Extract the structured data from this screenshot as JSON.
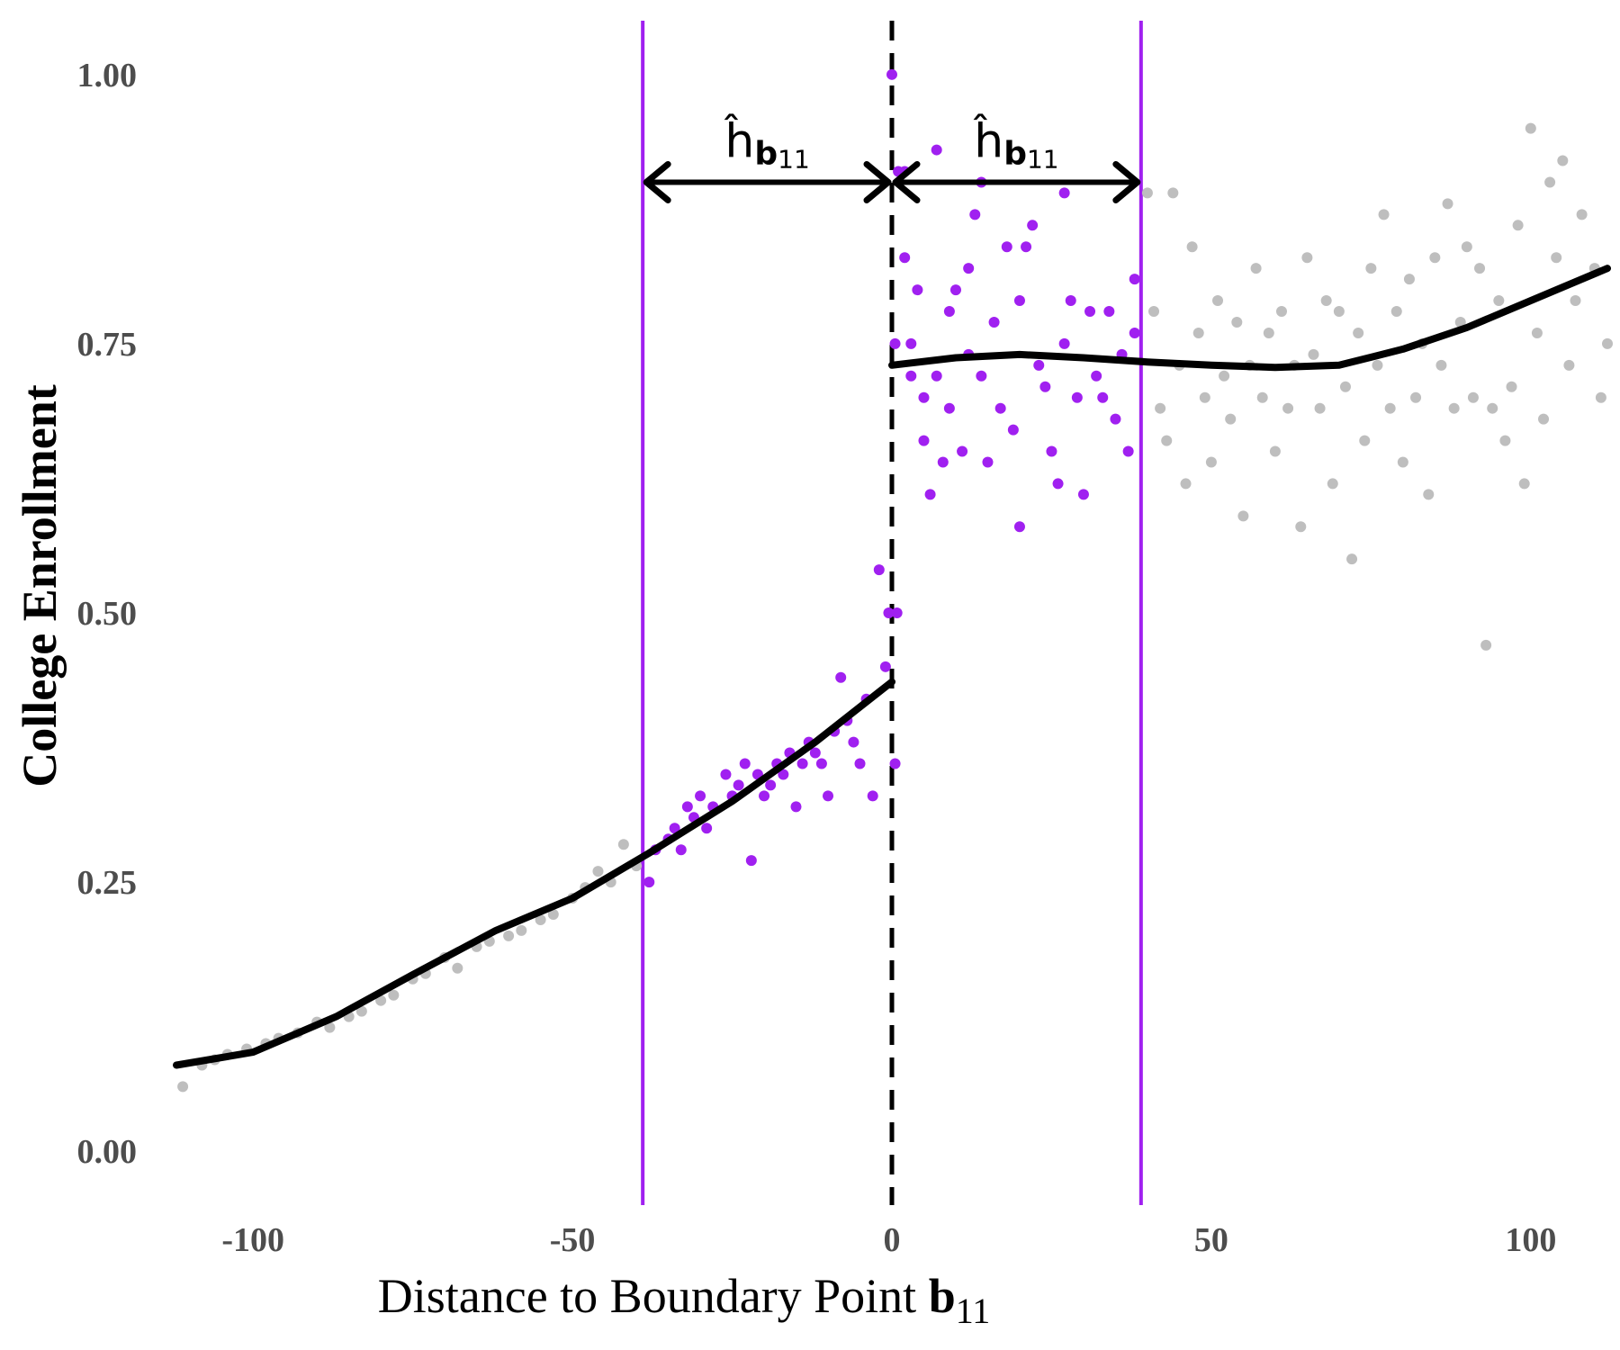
{
  "chart_data": {
    "type": "scatter",
    "x_label": "Distance to Boundary Point ",
    "x_label_bold": "b",
    "x_label_sub": "11",
    "y_label": "College Enrollment",
    "xlim": [
      -112,
      112
    ],
    "ylim": [
      -0.05,
      1.05
    ],
    "xticks": [
      -100,
      -50,
      0,
      50,
      100
    ],
    "yticks": [
      {
        "value": 0,
        "label": "0.00"
      },
      {
        "value": 0.25,
        "label": "0.25"
      },
      {
        "value": 0.5,
        "label": "0.50"
      },
      {
        "value": 0.75,
        "label": "0.75"
      },
      {
        "value": 1,
        "label": "1.00"
      }
    ],
    "grid": false,
    "series": [
      {
        "kind": "points",
        "color": "#bebebe",
        "x": [
          -111,
          -108,
          -106,
          -104,
          -101,
          -98,
          -96,
          -93,
          -90,
          -88,
          -85,
          -83,
          -80,
          -78,
          -75,
          -73,
          -70,
          -68,
          -65,
          -63,
          -60,
          -58,
          -55,
          -53,
          -50,
          -48,
          -46,
          -44,
          -42,
          -40,
          40,
          41,
          42,
          43,
          44,
          45,
          46,
          47,
          48,
          49,
          50,
          51,
          52,
          53,
          54,
          55,
          56,
          57,
          58,
          59,
          60,
          61,
          62,
          63,
          64,
          65,
          66,
          67,
          68,
          69,
          70,
          71,
          72,
          73,
          74,
          75,
          76,
          77,
          78,
          79,
          80,
          81,
          82,
          83,
          84,
          85,
          86,
          87,
          88,
          89,
          90,
          91,
          92,
          93,
          94,
          95,
          96,
          97,
          98,
          99,
          100,
          101,
          102,
          103,
          104,
          105,
          106,
          107,
          108,
          110,
          111,
          112
        ],
        "values": [
          0.06,
          0.08,
          0.085,
          0.09,
          0.095,
          0.1,
          0.105,
          0.11,
          0.12,
          0.115,
          0.125,
          0.13,
          0.14,
          0.145,
          0.16,
          0.165,
          0.18,
          0.17,
          0.19,
          0.195,
          0.2,
          0.205,
          0.215,
          0.22,
          0.235,
          0.245,
          0.26,
          0.25,
          0.285,
          0.265,
          0.89,
          0.78,
          0.69,
          0.66,
          0.89,
          0.73,
          0.62,
          0.84,
          0.76,
          0.7,
          0.64,
          0.79,
          0.72,
          0.68,
          0.77,
          0.59,
          0.73,
          0.82,
          0.7,
          0.76,
          0.65,
          0.78,
          0.69,
          0.73,
          0.58,
          0.83,
          0.74,
          0.69,
          0.79,
          0.62,
          0.78,
          0.71,
          0.55,
          0.76,
          0.66,
          0.82,
          0.73,
          0.87,
          0.69,
          0.78,
          0.64,
          0.81,
          0.7,
          0.75,
          0.61,
          0.83,
          0.73,
          0.88,
          0.69,
          0.77,
          0.84,
          0.7,
          0.82,
          0.47,
          0.69,
          0.79,
          0.66,
          0.71,
          0.86,
          0.62,
          0.95,
          0.76,
          0.68,
          0.9,
          0.83,
          0.92,
          0.73,
          0.79,
          0.87,
          0.82,
          0.7,
          0.75
        ]
      },
      {
        "kind": "points",
        "color": "#a020f0",
        "x": [
          -38,
          -37,
          -35,
          -34,
          -33,
          -32,
          -31,
          -30,
          -29,
          -28,
          -26,
          -25,
          -24,
          -23,
          -22,
          -21,
          -20,
          -19,
          -18,
          -17,
          -16,
          -15,
          -14,
          -13,
          -12,
          -11,
          -10,
          -9,
          -8,
          -7,
          -6,
          -5,
          -4,
          -3,
          -2,
          -1,
          0.5,
          0.8,
          -0.5,
          0,
          0.5,
          1,
          2,
          3,
          3,
          4,
          5,
          5,
          6,
          7,
          8,
          9,
          9,
          10,
          11,
          12,
          12,
          13,
          14,
          15,
          16,
          17,
          18,
          19,
          20,
          20,
          21,
          22,
          23,
          24,
          25,
          26,
          27,
          28,
          29,
          30,
          31,
          32,
          33,
          34,
          35,
          36,
          37,
          38,
          38,
          2,
          7,
          14,
          27
        ],
        "values": [
          0.25,
          0.28,
          0.29,
          0.3,
          0.28,
          0.32,
          0.31,
          0.33,
          0.3,
          0.32,
          0.35,
          0.33,
          0.34,
          0.36,
          0.27,
          0.35,
          0.33,
          0.34,
          0.36,
          0.35,
          0.37,
          0.32,
          0.36,
          0.38,
          0.37,
          0.36,
          0.33,
          0.39,
          0.44,
          0.4,
          0.38,
          0.36,
          0.42,
          0.33,
          0.54,
          0.45,
          0.36,
          0.5,
          0.5,
          1.0,
          0.75,
          0.91,
          0.83,
          0.75,
          0.72,
          0.8,
          0.7,
          0.66,
          0.61,
          0.72,
          0.64,
          0.78,
          0.69,
          0.8,
          0.65,
          0.74,
          0.82,
          0.87,
          0.72,
          0.64,
          0.77,
          0.69,
          0.84,
          0.67,
          0.79,
          0.58,
          0.84,
          0.86,
          0.73,
          0.71,
          0.65,
          0.62,
          0.75,
          0.79,
          0.7,
          0.61,
          0.78,
          0.72,
          0.7,
          0.78,
          0.68,
          0.74,
          0.65,
          0.81,
          0.76,
          0.91,
          0.93,
          0.9,
          0.89
        ]
      },
      {
        "kind": "line",
        "color": "#000000",
        "x": [
          -112,
          -100,
          -87,
          -75,
          -62,
          -50,
          -38,
          -25,
          -12,
          0
        ],
        "values": [
          0.08,
          0.092,
          0.125,
          0.164,
          0.205,
          0.235,
          0.277,
          0.325,
          0.38,
          0.436
        ]
      },
      {
        "kind": "line",
        "color": "#000000",
        "x": [
          0,
          10,
          20,
          30,
          40,
          50,
          60,
          70,
          80,
          90,
          100,
          112
        ],
        "values": [
          0.73,
          0.737,
          0.74,
          0.737,
          0.733,
          0.73,
          0.728,
          0.73,
          0.745,
          0.765,
          0.79,
          0.82
        ]
      }
    ],
    "vlines": [
      {
        "x": -39,
        "color": "#a020f0",
        "dashed": false
      },
      {
        "x": 39,
        "color": "#a020f0",
        "dashed": false
      },
      {
        "x": 0,
        "color": "#000000",
        "dashed": true
      }
    ],
    "arrows": [
      {
        "x": [
          -39,
          0
        ],
        "y": 0.9
      },
      {
        "x": [
          0,
          39
        ],
        "y": 0.9
      }
    ],
    "annotations": [
      {
        "text": "ĥ",
        "sub": "b",
        "subsub": "11"
      },
      {
        "text": "ĥ",
        "sub": "b",
        "subsub": "11"
      }
    ]
  }
}
